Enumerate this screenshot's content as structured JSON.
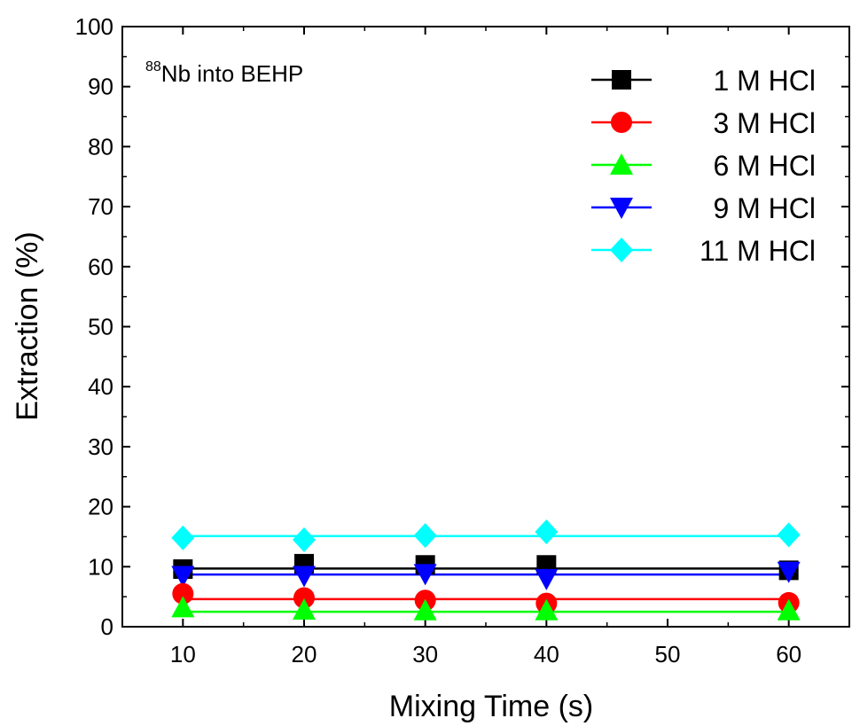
{
  "chart_data": {
    "type": "line",
    "annotation": {
      "sup": "88",
      "text": "Nb into BEHP"
    },
    "xlabel": "Mixing Time (s)",
    "ylabel": "Extraction (%)",
    "xlim": [
      5,
      65
    ],
    "ylim": [
      0,
      100
    ],
    "xticks": [
      10,
      20,
      30,
      40,
      50,
      60
    ],
    "yticks": [
      0,
      10,
      20,
      30,
      40,
      50,
      60,
      70,
      80,
      90,
      100
    ],
    "grid": false,
    "legend_position": "top-right",
    "series": [
      {
        "name": "1 M HCl",
        "color": "#000000",
        "marker": "square",
        "x": [
          10,
          20,
          30,
          40,
          60
        ],
        "y": [
          9.6,
          10.5,
          10.3,
          10.3,
          9.4
        ],
        "fit": 9.7
      },
      {
        "name": "3 M HCl",
        "color": "#ff0000",
        "marker": "circle",
        "x": [
          10,
          20,
          30,
          40,
          60
        ],
        "y": [
          5.5,
          4.8,
          4.4,
          3.9,
          4.0
        ],
        "fit": 4.6
      },
      {
        "name": "6 M HCl",
        "color": "#00ff00",
        "marker": "triangle-up",
        "x": [
          10,
          20,
          30,
          40,
          60
        ],
        "y": [
          3.2,
          2.8,
          2.7,
          2.7,
          2.7
        ],
        "fit": 2.5
      },
      {
        "name": "9 M HCl",
        "color": "#0000ff",
        "marker": "triangle-down",
        "x": [
          10,
          20,
          30,
          40,
          60
        ],
        "y": [
          8.5,
          8.5,
          8.8,
          8.0,
          9.2
        ],
        "fit": 8.7
      },
      {
        "name": "11 M HCl",
        "color": "#00ffff",
        "marker": "diamond",
        "x": [
          10,
          20,
          30,
          40,
          60
        ],
        "y": [
          14.8,
          14.5,
          15.2,
          15.8,
          15.3
        ],
        "fit": 15.1
      }
    ]
  }
}
